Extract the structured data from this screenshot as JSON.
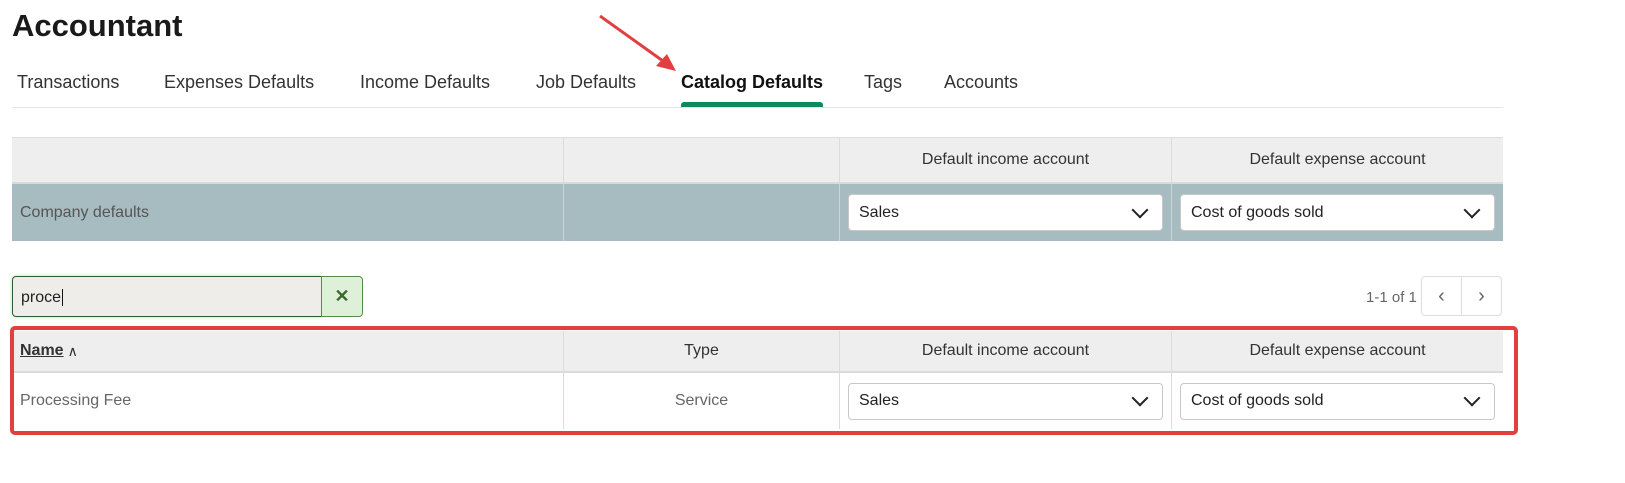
{
  "title": "Accountant",
  "tabs": [
    {
      "label": "Transactions"
    },
    {
      "label": "Expenses Defaults"
    },
    {
      "label": "Income Defaults"
    },
    {
      "label": "Job Defaults"
    },
    {
      "label": "Catalog Defaults",
      "active": true
    },
    {
      "label": "Tags"
    },
    {
      "label": "Accounts"
    }
  ],
  "company": {
    "headers": [
      "",
      "",
      "Default income account",
      "Default expense account"
    ],
    "label": "Company defaults",
    "income": "Sales",
    "expense": "Cost of goods sold",
    "row_color": "#a7bcc0"
  },
  "search": {
    "value": "proce",
    "clear_icon": "close-icon"
  },
  "pager": {
    "text": "1-1 of 1"
  },
  "items": {
    "headers": [
      "Name",
      "Type",
      "Default income account",
      "Default expense account"
    ],
    "rows": [
      {
        "name": "Processing Fee",
        "type": "Service",
        "income": "Sales",
        "expense": "Cost of goods sold"
      }
    ]
  },
  "annotations": {
    "color": "#e0403f"
  }
}
